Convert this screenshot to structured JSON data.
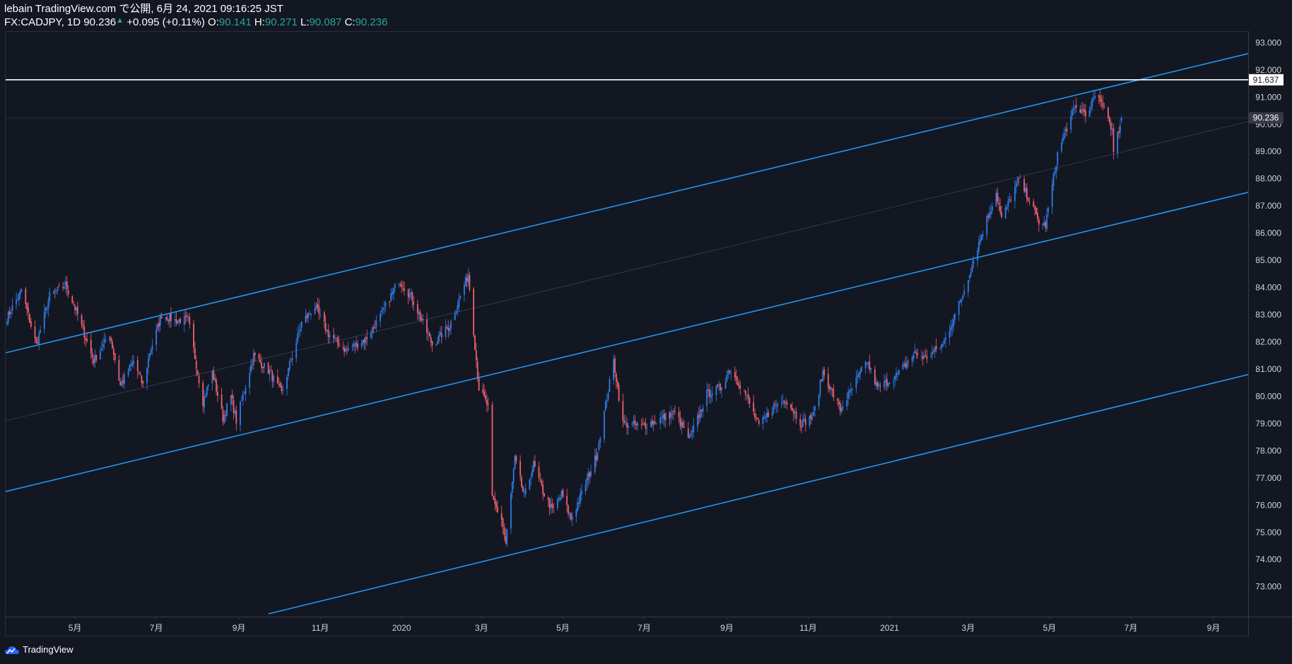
{
  "header": {
    "line1": "lebain TradingView.com で公開, 6月 24, 2021 09:16:25 JST",
    "symbol": "FX:CADJPY, 1D 90.236",
    "change": "+0.095 (+0.11%)",
    "o_label": "O:",
    "o": "90.141",
    "h_label": "H:",
    "h": "90.271",
    "l_label": "L:",
    "l": "90.087",
    "c_label": "C:",
    "c": "90.236"
  },
  "footer": {
    "brand": "TradingView"
  },
  "colors": {
    "background": "#131722",
    "up": "#2e7de9",
    "down": "#f0616d",
    "channel": "#2196f3",
    "horizontal_line": "#ffffff"
  },
  "chart_data": {
    "type": "candlestick",
    "symbol": "FX:CADJPY",
    "interval": "1D",
    "y_axis": {
      "ticks": [
        73,
        74,
        75,
        76,
        77,
        78,
        79,
        80,
        81,
        82,
        83,
        84,
        85,
        86,
        87,
        88,
        89,
        90,
        91,
        92,
        93
      ],
      "tick_labels": [
        "73.000",
        "74.000",
        "75.000",
        "76.000",
        "77.000",
        "78.000",
        "79.000",
        "80.000",
        "81.000",
        "82.000",
        "83.000",
        "84.000",
        "85.000",
        "86.000",
        "87.000",
        "88.000",
        "89.000",
        "90.000",
        "91.000",
        "92.000",
        "93.000"
      ],
      "range": [
        71.9,
        93.4
      ]
    },
    "x_axis": {
      "tick_labels": [
        "5月",
        "7月",
        "9月",
        "11月",
        "2020",
        "3月",
        "5月",
        "7月",
        "9月",
        "11月",
        "2021",
        "3月",
        "5月",
        "7月",
        "9月"
      ],
      "tick_dates": [
        "2019-05-01",
        "2019-07-01",
        "2019-09-01",
        "2019-11-01",
        "2020-01-01",
        "2020-03-01",
        "2020-05-01",
        "2020-07-01",
        "2020-09-01",
        "2020-11-01",
        "2021-01-01",
        "2021-03-01",
        "2021-05-01",
        "2021-07-01",
        "2021-09-01"
      ],
      "range": [
        "2019-03-10",
        "2021-09-27"
      ]
    },
    "price_labels": [
      {
        "value": "91.637",
        "style": "horizontal-line"
      },
      {
        "value": "90.236",
        "style": "last-price"
      }
    ],
    "horizontal_line": 91.637,
    "last_price": 90.236,
    "path_points": [
      [
        "2019-03-11",
        82.9
      ],
      [
        "2019-03-22",
        83.9
      ],
      [
        "2019-03-29",
        82.6
      ],
      [
        "2019-04-02",
        81.9
      ],
      [
        "2019-04-12",
        83.7
      ],
      [
        "2019-04-24",
        84.1
      ],
      [
        "2019-05-03",
        83.0
      ],
      [
        "2019-05-15",
        81.3
      ],
      [
        "2019-05-27",
        82.3
      ],
      [
        "2019-06-04",
        80.4
      ],
      [
        "2019-06-14",
        81.3
      ],
      [
        "2019-06-21",
        80.4
      ],
      [
        "2019-06-26",
        81.6
      ],
      [
        "2019-07-05",
        83.0
      ],
      [
        "2019-07-15",
        82.8
      ],
      [
        "2019-07-25",
        82.8
      ],
      [
        "2019-08-05",
        79.8
      ],
      [
        "2019-08-12",
        80.9
      ],
      [
        "2019-08-20",
        79.2
      ],
      [
        "2019-08-26",
        80.0
      ],
      [
        "2019-08-30",
        79.1
      ],
      [
        "2019-09-12",
        81.5
      ],
      [
        "2019-09-24",
        80.9
      ],
      [
        "2019-10-03",
        80.1
      ],
      [
        "2019-10-18",
        82.7
      ],
      [
        "2019-10-28",
        83.3
      ],
      [
        "2019-11-07",
        82.3
      ],
      [
        "2019-11-20",
        81.7
      ],
      [
        "2019-12-05",
        82.1
      ],
      [
        "2019-12-17",
        83.0
      ],
      [
        "2019-12-30",
        84.3
      ],
      [
        "2020-01-09",
        83.6
      ],
      [
        "2020-01-16",
        82.8
      ],
      [
        "2020-01-24",
        81.9
      ],
      [
        "2020-02-06",
        82.6
      ],
      [
        "2020-02-20",
        84.5
      ],
      [
        "2020-02-28",
        80.3
      ],
      [
        "2020-03-06",
        79.6
      ],
      [
        "2020-03-09",
        76.2
      ],
      [
        "2020-03-16",
        75.5
      ],
      [
        "2020-03-19",
        74.6
      ],
      [
        "2020-03-26",
        77.7
      ],
      [
        "2020-04-02",
        76.3
      ],
      [
        "2020-04-09",
        77.5
      ],
      [
        "2020-04-16",
        76.5
      ],
      [
        "2020-04-23",
        75.8
      ],
      [
        "2020-04-30",
        76.4
      ],
      [
        "2020-05-07",
        75.5
      ],
      [
        "2020-05-14",
        76.3
      ],
      [
        "2020-05-26",
        77.8
      ],
      [
        "2020-06-08",
        81.3
      ],
      [
        "2020-06-15",
        79.0
      ],
      [
        "2020-06-29",
        78.9
      ],
      [
        "2020-07-10",
        79.1
      ],
      [
        "2020-07-24",
        79.4
      ],
      [
        "2020-08-04",
        78.4
      ],
      [
        "2020-08-17",
        80.1
      ],
      [
        "2020-08-27",
        80.3
      ],
      [
        "2020-09-03",
        81.0
      ],
      [
        "2020-09-14",
        80.2
      ],
      [
        "2020-09-25",
        78.9
      ],
      [
        "2020-10-06",
        79.6
      ],
      [
        "2020-10-15",
        79.9
      ],
      [
        "2020-10-27",
        79.0
      ],
      [
        "2020-11-05",
        79.3
      ],
      [
        "2020-11-12",
        80.9
      ],
      [
        "2020-11-25",
        79.5
      ],
      [
        "2020-12-03",
        80.2
      ],
      [
        "2020-12-15",
        81.3
      ],
      [
        "2020-12-23",
        80.3
      ],
      [
        "2021-01-07",
        80.8
      ],
      [
        "2021-01-20",
        81.6
      ],
      [
        "2021-01-28",
        81.4
      ],
      [
        "2021-02-10",
        81.9
      ],
      [
        "2021-02-24",
        83.6
      ],
      [
        "2021-03-10",
        85.8
      ],
      [
        "2021-03-22",
        87.5
      ],
      [
        "2021-03-26",
        86.5
      ],
      [
        "2021-04-08",
        88.0
      ],
      [
        "2021-04-15",
        87.3
      ],
      [
        "2021-04-23",
        86.4
      ],
      [
        "2021-04-28",
        86.3
      ],
      [
        "2021-05-07",
        88.9
      ],
      [
        "2021-05-14",
        89.9
      ],
      [
        "2021-05-20",
        90.6
      ],
      [
        "2021-05-31",
        90.4
      ],
      [
        "2021-06-03",
        91.0
      ],
      [
        "2021-06-11",
        90.7
      ],
      [
        "2021-06-17",
        89.8
      ],
      [
        "2021-06-18",
        88.9
      ],
      [
        "2021-06-21",
        89.6
      ],
      [
        "2021-06-24",
        90.236
      ]
    ],
    "channel_lines": [
      {
        "name": "upper",
        "from": [
          "2019-03-10",
          81.6
        ],
        "to": [
          "2021-09-27",
          92.6
        ]
      },
      {
        "name": "middle",
        "from": [
          "2019-03-10",
          76.5
        ],
        "to": [
          "2021-09-27",
          87.5
        ]
      },
      {
        "name": "lower",
        "from": [
          "2019-09-23",
          72.0
        ],
        "to": [
          "2021-09-27",
          80.8
        ]
      }
    ],
    "thin_guides": [
      {
        "from": [
          "2019-03-10",
          79.1
        ],
        "to": [
          "2021-09-27",
          90.1
        ]
      }
    ]
  }
}
